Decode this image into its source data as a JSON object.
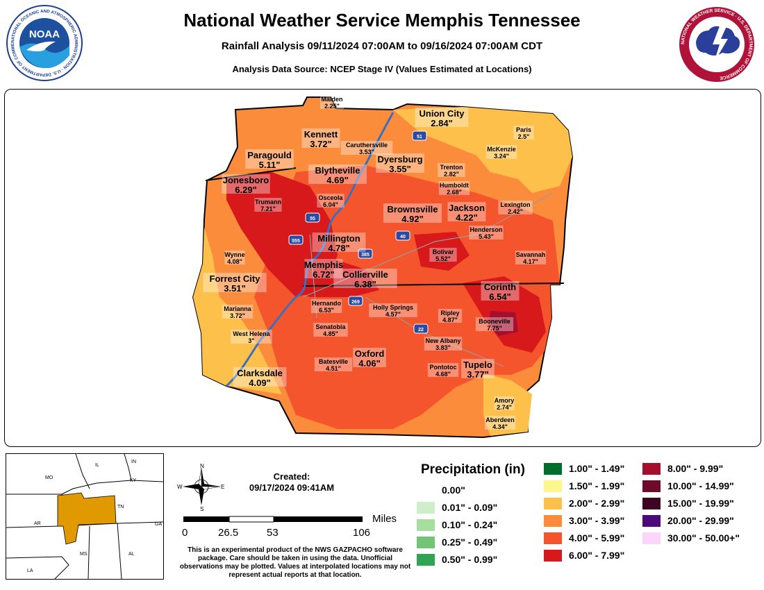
{
  "header": {
    "title": "National Weather Service Memphis Tennessee",
    "subtitle": "Rainfall Analysis 09/11/2024 07:00AM to 09/16/2024 07:00AM CDT",
    "source": "Analysis Data Source: NCEP Stage IV (Values Estimated at Locations)",
    "noaa_logo_text": "NOAA",
    "noaa_ring_text": "NATIONAL OCEANIC AND ATMOSPHERIC ADMINISTRATION · U.S. DEPARTMENT OF COMMERCE",
    "nws_ring_text": "NATIONAL WEATHER SERVICE · U.S. DEPARTMENT OF COMMERCE"
  },
  "map": {
    "locations": [
      {
        "name": "Malden",
        "value": "2.25\"",
        "size": "small"
      },
      {
        "name": "Union City",
        "value": "2.84\"",
        "size": "large"
      },
      {
        "name": "Kennett",
        "value": "3.72\"",
        "size": "large"
      },
      {
        "name": "Caruthersville",
        "value": "3.53\"",
        "size": "small"
      },
      {
        "name": "Paris",
        "value": "2.5\"",
        "size": "small"
      },
      {
        "name": "Paragould",
        "value": "5.11\"",
        "size": "large"
      },
      {
        "name": "Dyersburg",
        "value": "3.55\"",
        "size": "large"
      },
      {
        "name": "McKenzie",
        "value": "3.24\"",
        "size": "small"
      },
      {
        "name": "Blytheville",
        "value": "4.69\"",
        "size": "large"
      },
      {
        "name": "Trenton",
        "value": "2.82\"",
        "size": "small"
      },
      {
        "name": "Jonesboro",
        "value": "6.29\"",
        "size": "large"
      },
      {
        "name": "Humboldt",
        "value": "2.68\"",
        "size": "small"
      },
      {
        "name": "Osceola",
        "value": "6.04\"",
        "size": "small"
      },
      {
        "name": "Trumann",
        "value": "7.21\"",
        "size": "small"
      },
      {
        "name": "Lexington",
        "value": "2.42\"",
        "size": "small"
      },
      {
        "name": "Brownsville",
        "value": "4.92\"",
        "size": "large"
      },
      {
        "name": "Jackson",
        "value": "4.22\"",
        "size": "large"
      },
      {
        "name": "Henderson",
        "value": "5.43\"",
        "size": "small"
      },
      {
        "name": "Millington",
        "value": "4.78\"",
        "size": "large"
      },
      {
        "name": "Wynne",
        "value": "4.08\"",
        "size": "small"
      },
      {
        "name": "Bolivar",
        "value": "5.52\"",
        "size": "small"
      },
      {
        "name": "Savannah",
        "value": "4.17\"",
        "size": "small"
      },
      {
        "name": "Memphis",
        "value": "6.72\"",
        "size": "large"
      },
      {
        "name": "Collierville",
        "value": "6.38\"",
        "size": "large"
      },
      {
        "name": "Forrest City",
        "value": "3.51\"",
        "size": "large"
      },
      {
        "name": "Corinth",
        "value": "6.54\"",
        "size": "large"
      },
      {
        "name": "Hernando",
        "value": "6.53\"",
        "size": "small"
      },
      {
        "name": "Holly Springs",
        "value": "4.57\"",
        "size": "small"
      },
      {
        "name": "Marianna",
        "value": "3.72\"",
        "size": "small"
      },
      {
        "name": "Ripley",
        "value": "4.87\"",
        "size": "small"
      },
      {
        "name": "Booneville",
        "value": "7.75\"",
        "size": "small"
      },
      {
        "name": "Senatobia",
        "value": "4.85\"",
        "size": "small"
      },
      {
        "name": "West Helena",
        "value": "3\"",
        "size": "small"
      },
      {
        "name": "New Albany",
        "value": "3.83\"",
        "size": "small"
      },
      {
        "name": "Oxford",
        "value": "4.06\"",
        "size": "large"
      },
      {
        "name": "Batesville",
        "value": "4.51\"",
        "size": "small"
      },
      {
        "name": "Pontotoc",
        "value": "4.68\"",
        "size": "small"
      },
      {
        "name": "Tupelo",
        "value": "3.77\"",
        "size": "large"
      },
      {
        "name": "Clarksdale",
        "value": "4.09\"",
        "size": "large"
      },
      {
        "name": "Amory",
        "value": "2.74\"",
        "size": "small"
      },
      {
        "name": "Aberdeen",
        "value": "4.34\"",
        "size": "small"
      }
    ],
    "highways": [
      "51",
      "55",
      "555",
      "40",
      "385",
      "269",
      "22"
    ]
  },
  "inset": {
    "states": [
      "MO",
      "IL",
      "IN",
      "KY",
      "TN",
      "AR",
      "MS",
      "AL",
      "GA",
      "LA"
    ],
    "highlight_color": "#e09a00"
  },
  "compass": {
    "n": "N",
    "s": "S",
    "e": "E",
    "w": "W"
  },
  "created": {
    "label": "Created:",
    "value": "09/17/2024 09:41AM"
  },
  "scale": {
    "unit": "Miles",
    "ticks": [
      "0",
      "26.5",
      "53",
      "106"
    ]
  },
  "disclaimer": "This is an experimental product of the NWS GAZPACHO software package. Care should be taken in using the data. Unofficial observations may be plotted. Values at interpolated locations may not represent actual reports at that location.",
  "legend": {
    "title": "Precipitation (in)",
    "items": [
      {
        "label": "0.00\"",
        "color": "#ffffff"
      },
      {
        "label": "0.01\" - 0.09\"",
        "color": "#cdeec9"
      },
      {
        "label": "0.10\" - 0.24\"",
        "color": "#a6dea0"
      },
      {
        "label": "0.25\" - 0.49\"",
        "color": "#74c476"
      },
      {
        "label": "0.50\" - 0.99\"",
        "color": "#31a354"
      },
      {
        "label": "1.00\" - 1.49\"",
        "color": "#006d2c"
      },
      {
        "label": "1.50\" - 1.99\"",
        "color": "#fdf68a"
      },
      {
        "label": "2.00\" - 2.99\"",
        "color": "#fdc04a"
      },
      {
        "label": "3.00\" - 3.99\"",
        "color": "#fb8c3c"
      },
      {
        "label": "4.00\" - 5.99\"",
        "color": "#f4552c"
      },
      {
        "label": "6.00\" - 7.99\"",
        "color": "#d7191c"
      },
      {
        "label": "8.00\" - 9.99\"",
        "color": "#a50f2d"
      },
      {
        "label": "10.00\" - 14.99\"",
        "color": "#6e0b2a"
      },
      {
        "label": "15.00\" - 19.99\"",
        "color": "#3d0524"
      },
      {
        "label": "20.00\" - 29.99\"",
        "color": "#4b0a78"
      },
      {
        "label": "30.00\" - 50.00+\"",
        "color": "#fcd5fa"
      }
    ]
  }
}
